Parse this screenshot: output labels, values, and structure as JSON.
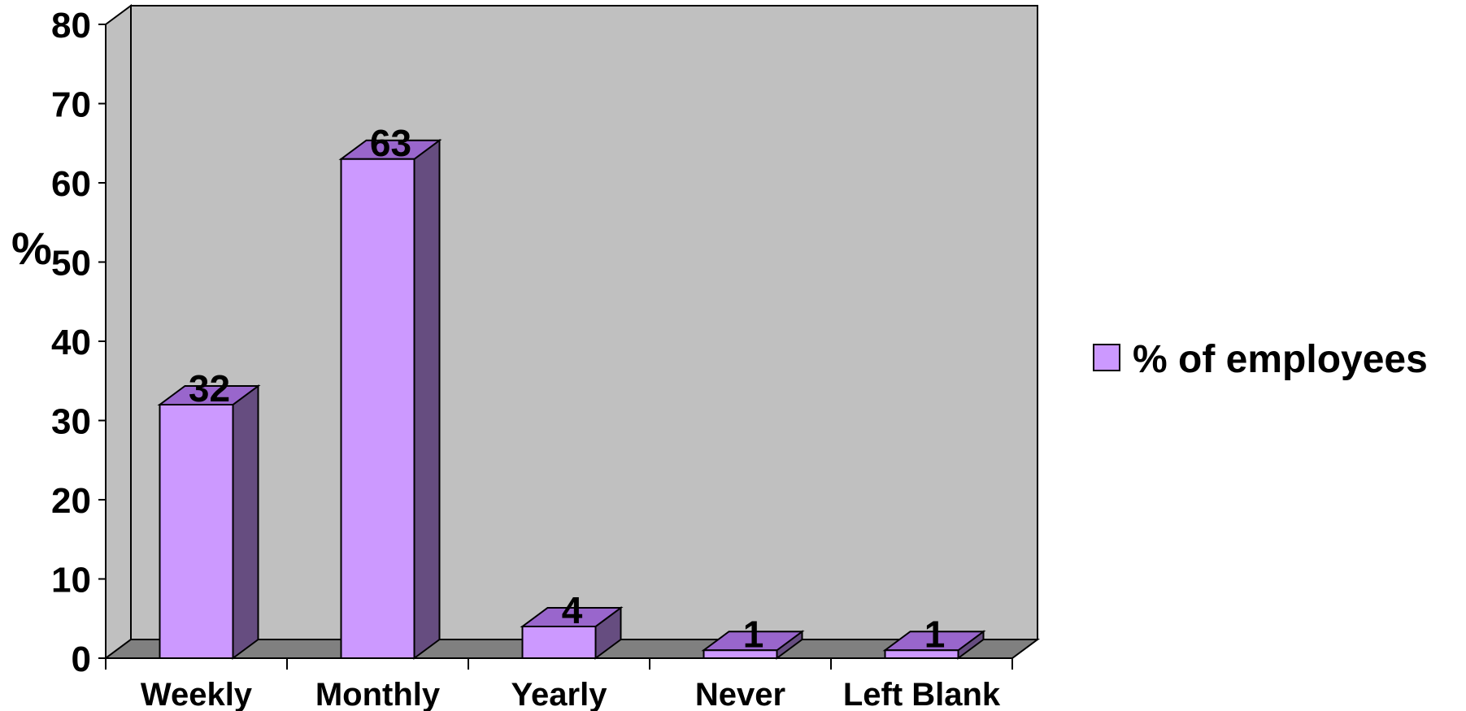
{
  "chart_data": {
    "type": "bar",
    "style": "3d-column",
    "categories": [
      "Weekly",
      "Monthly",
      "Yearly",
      "Never",
      "Left Blank"
    ],
    "series": [
      {
        "name": "% of employees",
        "values": [
          32,
          63,
          4,
          1,
          1
        ]
      }
    ],
    "data_labels": [
      "32",
      "63",
      "4",
      "1",
      "1"
    ],
    "ylabel": "%",
    "xlabel": "",
    "ylim": [
      0,
      80
    ],
    "yticks": [
      0,
      10,
      20,
      30,
      40,
      50,
      60,
      70,
      80
    ],
    "grid": false,
    "legend_position": "right",
    "colors": {
      "bar_front": "#cc99ff",
      "bar_top": "#9966cc",
      "bar_side": "#664d80",
      "back_wall": "#c0c0c0",
      "side_wall": "#c0c0c0",
      "floor": "#808080",
      "outline": "#000000"
    }
  }
}
